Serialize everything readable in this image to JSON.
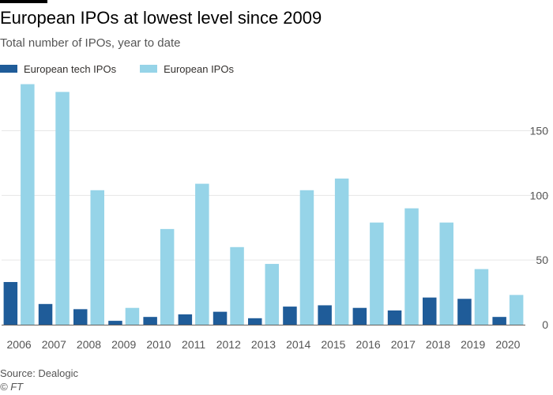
{
  "header": {
    "title": "European IPOs at lowest level since 2009",
    "subtitle": "Total number of IPOs, year to date"
  },
  "footer": {
    "source": "Source: Dealogic",
    "copyright": "© FT"
  },
  "colors": {
    "tech": "#1f5c99",
    "total": "#96d4e8",
    "grid": "#e6e6e6",
    "axis_text": "#555555"
  },
  "chart_data": {
    "type": "bar",
    "title": "European IPOs at lowest level since 2009",
    "subtitle": "Total number of IPOs, year to date",
    "xlabel": "",
    "ylabel": "",
    "categories": [
      "2006",
      "2007",
      "2008",
      "2009",
      "2010",
      "2011",
      "2012",
      "2013",
      "2014",
      "2015",
      "2016",
      "2017",
      "2018",
      "2019",
      "2020"
    ],
    "series": [
      {
        "name": "European tech IPOs",
        "color": "#1f5c99",
        "values": [
          33,
          16,
          12,
          3,
          6,
          8,
          10,
          5,
          14,
          15,
          13,
          11,
          21,
          20,
          6
        ]
      },
      {
        "name": "European IPOs",
        "color": "#96d4e8",
        "values": [
          186,
          180,
          104,
          13,
          74,
          109,
          60,
          47,
          104,
          113,
          79,
          90,
          79,
          43,
          23
        ]
      }
    ],
    "ylim": [
      0,
      190
    ],
    "yticks": [
      0,
      50,
      100,
      150
    ],
    "grid": true,
    "y_axis_side": "right",
    "legend_position": "top-left"
  }
}
